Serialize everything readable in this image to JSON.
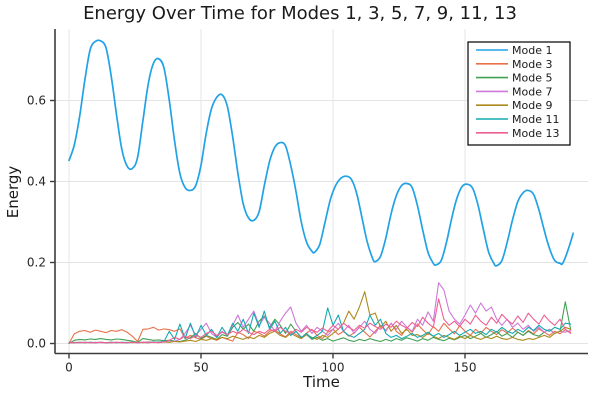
{
  "chart_data": {
    "type": "line",
    "title": "Energy Over Time for Modes 1, 3, 5, 7, 9, 11, 13",
    "xlabel": "Time",
    "ylabel": "Energy",
    "xlim": [
      -5.3,
      196.6
    ],
    "ylim": [
      -0.0247,
      0.7765
    ],
    "grid": true,
    "grid_color": "#e4e4e4",
    "axis_color": "#3c3c3c",
    "tick_label_color": "#262626",
    "legend": {
      "position": "top-right",
      "border_color": "#000000",
      "bg": "#ffffff"
    },
    "xticks": {
      "values": [
        0,
        50,
        100,
        150
      ],
      "labels": [
        "0",
        "50",
        "100",
        "150"
      ]
    },
    "yticks": {
      "values": [
        0.0,
        0.2,
        0.4,
        0.6
      ],
      "labels": [
        "0.0",
        "0.2",
        "0.4",
        "0.6"
      ]
    },
    "series": [
      {
        "name": "Mode 1",
        "color": "#22a2e6",
        "width": 1.7,
        "smooth": true,
        "points": [
          [
            0,
            0.452
          ],
          [
            2,
            0.49
          ],
          [
            4,
            0.56
          ],
          [
            6,
            0.65
          ],
          [
            8,
            0.725
          ],
          [
            10,
            0.746
          ],
          [
            12,
            0.747
          ],
          [
            14,
            0.73
          ],
          [
            16,
            0.66
          ],
          [
            18,
            0.565
          ],
          [
            20,
            0.48
          ],
          [
            22,
            0.438
          ],
          [
            24,
            0.432
          ],
          [
            26,
            0.46
          ],
          [
            28,
            0.55
          ],
          [
            30,
            0.64
          ],
          [
            32,
            0.692
          ],
          [
            34,
            0.703
          ],
          [
            36,
            0.68
          ],
          [
            38,
            0.6
          ],
          [
            40,
            0.5
          ],
          [
            42,
            0.42
          ],
          [
            44,
            0.385
          ],
          [
            46,
            0.378
          ],
          [
            48,
            0.39
          ],
          [
            50,
            0.44
          ],
          [
            52,
            0.52
          ],
          [
            54,
            0.58
          ],
          [
            56,
            0.608
          ],
          [
            58,
            0.614
          ],
          [
            60,
            0.585
          ],
          [
            62,
            0.51
          ],
          [
            64,
            0.42
          ],
          [
            66,
            0.345
          ],
          [
            68,
            0.31
          ],
          [
            70,
            0.304
          ],
          [
            72,
            0.325
          ],
          [
            74,
            0.39
          ],
          [
            76,
            0.45
          ],
          [
            78,
            0.485
          ],
          [
            80,
            0.496
          ],
          [
            82,
            0.488
          ],
          [
            84,
            0.44
          ],
          [
            86,
            0.375
          ],
          [
            88,
            0.3
          ],
          [
            90,
            0.25
          ],
          [
            92,
            0.228
          ],
          [
            93,
            0.225
          ],
          [
            95,
            0.245
          ],
          [
            97,
            0.3
          ],
          [
            99,
            0.355
          ],
          [
            101,
            0.39
          ],
          [
            103,
            0.408
          ],
          [
            105,
            0.413
          ],
          [
            107,
            0.405
          ],
          [
            109,
            0.37
          ],
          [
            111,
            0.31
          ],
          [
            113,
            0.25
          ],
          [
            115,
            0.21
          ],
          [
            116,
            0.202
          ],
          [
            118,
            0.215
          ],
          [
            120,
            0.26
          ],
          [
            122,
            0.32
          ],
          [
            124,
            0.365
          ],
          [
            126,
            0.39
          ],
          [
            128,
            0.395
          ],
          [
            130,
            0.385
          ],
          [
            132,
            0.34
          ],
          [
            134,
            0.28
          ],
          [
            136,
            0.225
          ],
          [
            138,
            0.198
          ],
          [
            139,
            0.194
          ],
          [
            141,
            0.205
          ],
          [
            143,
            0.25
          ],
          [
            145,
            0.31
          ],
          [
            147,
            0.36
          ],
          [
            149,
            0.388
          ],
          [
            151,
            0.393
          ],
          [
            153,
            0.382
          ],
          [
            155,
            0.34
          ],
          [
            157,
            0.28
          ],
          [
            159,
            0.225
          ],
          [
            161,
            0.197
          ],
          [
            162,
            0.192
          ],
          [
            164,
            0.205
          ],
          [
            166,
            0.25
          ],
          [
            168,
            0.305
          ],
          [
            170,
            0.35
          ],
          [
            172,
            0.372
          ],
          [
            174,
            0.378
          ],
          [
            176,
            0.368
          ],
          [
            178,
            0.33
          ],
          [
            180,
            0.28
          ],
          [
            182,
            0.235
          ],
          [
            184,
            0.205
          ],
          [
            186,
            0.198
          ],
          [
            187,
            0.198
          ],
          [
            189,
            0.23
          ],
          [
            191,
            0.272
          ]
        ]
      },
      {
        "name": "Mode 3",
        "color": "#e8714c",
        "width": 1.1,
        "smooth": false,
        "t0": 0,
        "dt": 2,
        "values": [
          0.0,
          0.024,
          0.03,
          0.032,
          0.028,
          0.033,
          0.03,
          0.027,
          0.032,
          0.03,
          0.034,
          0.028,
          0.018,
          0.005,
          0.035,
          0.036,
          0.04,
          0.033,
          0.036,
          0.034,
          0.03,
          0.036,
          0.012,
          0.02,
          0.014,
          0.01,
          0.018,
          0.012,
          0.008,
          0.015,
          0.01,
          0.006,
          0.028,
          0.022,
          0.012,
          0.03,
          0.026,
          0.018,
          0.03,
          0.034,
          0.024,
          0.016,
          0.03,
          0.022,
          0.014,
          0.026,
          0.035,
          0.02,
          0.012,
          0.028,
          0.035,
          0.022,
          0.03,
          0.018,
          0.026,
          0.04,
          0.028,
          0.016,
          0.03,
          0.045,
          0.032,
          0.05,
          0.03,
          0.02,
          0.04,
          0.028,
          0.048,
          0.034,
          0.022,
          0.042,
          0.03,
          0.05,
          0.036,
          0.024,
          0.044,
          0.03,
          0.02,
          0.035,
          0.025,
          0.04,
          0.03,
          0.022,
          0.034,
          0.026,
          0.038,
          0.028,
          0.02,
          0.032,
          0.024,
          0.036,
          0.028,
          0.02,
          0.03,
          0.024,
          0.034,
          0.028
        ]
      },
      {
        "name": "Mode 5",
        "color": "#3fa153",
        "width": 1.1,
        "smooth": false,
        "t0": 0,
        "dt": 2,
        "values": [
          0.0,
          0.008,
          0.01,
          0.009,
          0.011,
          0.01,
          0.012,
          0.01,
          0.009,
          0.011,
          0.01,
          0.008,
          0.006,
          0.003,
          0.012,
          0.01,
          0.008,
          0.009,
          0.007,
          0.008,
          0.006,
          0.005,
          0.008,
          0.015,
          0.025,
          0.012,
          0.02,
          0.015,
          0.01,
          0.022,
          0.018,
          0.04,
          0.052,
          0.035,
          0.048,
          0.03,
          0.055,
          0.068,
          0.04,
          0.06,
          0.045,
          0.025,
          0.048,
          0.03,
          0.015,
          0.022,
          0.01,
          0.015,
          0.008,
          0.012,
          0.006,
          0.01,
          0.014,
          0.008,
          0.005,
          0.01,
          0.007,
          0.012,
          0.008,
          0.005,
          0.01,
          0.006,
          0.012,
          0.008,
          0.014,
          0.01,
          0.006,
          0.012,
          0.008,
          0.015,
          0.01,
          0.007,
          0.013,
          0.009,
          0.015,
          0.02,
          0.012,
          0.018,
          0.025,
          0.015,
          0.022,
          0.03,
          0.018,
          0.025,
          0.015,
          0.028,
          0.02,
          0.03,
          0.022,
          0.018,
          0.028,
          0.035,
          0.025,
          0.03,
          0.103,
          0.035
        ]
      },
      {
        "name": "Mode 7",
        "color": "#cd78d9",
        "width": 1.1,
        "smooth": false,
        "t0": 0,
        "dt": 2,
        "values": [
          0.002,
          0.003,
          0.002,
          0.003,
          0.002,
          0.003,
          0.002,
          0.002,
          0.003,
          0.002,
          0.003,
          0.002,
          0.003,
          0.002,
          0.003,
          0.004,
          0.003,
          0.004,
          0.005,
          0.004,
          0.006,
          0.01,
          0.025,
          0.045,
          0.02,
          0.035,
          0.05,
          0.025,
          0.015,
          0.03,
          0.02,
          0.045,
          0.07,
          0.04,
          0.06,
          0.08,
          0.045,
          0.065,
          0.05,
          0.03,
          0.055,
          0.075,
          0.09,
          0.05,
          0.03,
          0.045,
          0.025,
          0.04,
          0.03,
          0.02,
          0.035,
          0.05,
          0.03,
          0.045,
          0.025,
          0.04,
          0.055,
          0.035,
          0.025,
          0.045,
          0.03,
          0.05,
          0.035,
          0.055,
          0.04,
          0.03,
          0.06,
          0.045,
          0.078,
          0.055,
          0.15,
          0.132,
          0.08,
          0.06,
          0.048,
          0.07,
          0.095,
          0.075,
          0.1,
          0.08,
          0.09,
          0.06,
          0.045,
          0.06,
          0.04,
          0.05,
          0.035,
          0.045,
          0.03,
          0.04,
          0.028,
          0.035,
          0.025,
          0.03,
          0.028,
          0.032
        ]
      },
      {
        "name": "Mode 9",
        "color": "#ad8a1e",
        "width": 1.1,
        "smooth": false,
        "t0": 0,
        "dt": 2,
        "values": [
          0.002,
          0.002,
          0.003,
          0.002,
          0.003,
          0.002,
          0.003,
          0.002,
          0.002,
          0.003,
          0.002,
          0.003,
          0.002,
          0.003,
          0.002,
          0.003,
          0.004,
          0.003,
          0.004,
          0.003,
          0.005,
          0.004,
          0.006,
          0.008,
          0.005,
          0.01,
          0.008,
          0.012,
          0.01,
          0.015,
          0.012,
          0.018,
          0.014,
          0.01,
          0.016,
          0.012,
          0.02,
          0.015,
          0.025,
          0.03,
          0.02,
          0.015,
          0.025,
          0.018,
          0.012,
          0.022,
          0.015,
          0.01,
          0.02,
          0.015,
          0.025,
          0.035,
          0.05,
          0.08,
          0.06,
          0.09,
          0.128,
          0.07,
          0.075,
          0.04,
          0.055,
          0.03,
          0.045,
          0.025,
          0.035,
          0.02,
          0.022,
          0.015,
          0.025,
          0.018,
          0.012,
          0.02,
          0.015,
          0.01,
          0.018,
          0.012,
          0.02,
          0.014,
          0.01,
          0.016,
          0.012,
          0.018,
          0.012,
          0.01,
          0.015,
          0.01,
          0.008,
          0.012,
          0.01,
          0.015,
          0.02,
          0.015,
          0.025,
          0.03,
          0.04,
          0.035
        ]
      },
      {
        "name": "Mode 11",
        "color": "#17a9b2",
        "width": 1.1,
        "smooth": false,
        "t0": 0,
        "dt": 2,
        "values": [
          0.003,
          0.002,
          0.003,
          0.002,
          0.003,
          0.002,
          0.003,
          0.002,
          0.003,
          0.002,
          0.003,
          0.002,
          0.003,
          0.002,
          0.003,
          0.002,
          0.004,
          0.003,
          0.005,
          0.03,
          0.01,
          0.048,
          0.012,
          0.05,
          0.015,
          0.045,
          0.02,
          0.035,
          0.015,
          0.04,
          0.02,
          0.05,
          0.03,
          0.06,
          0.025,
          0.075,
          0.04,
          0.08,
          0.035,
          0.055,
          0.025,
          0.04,
          0.02,
          0.03,
          0.015,
          0.025,
          0.012,
          0.02,
          0.03,
          0.088,
          0.045,
          0.07,
          0.03,
          0.02,
          0.015,
          0.025,
          0.035,
          0.07,
          0.045,
          0.06,
          0.025,
          0.015,
          0.02,
          0.012,
          0.018,
          0.025,
          0.015,
          0.02,
          0.028,
          0.018,
          0.025,
          0.015,
          0.022,
          0.03,
          0.02,
          0.028,
          0.035,
          0.025,
          0.03,
          0.022,
          0.035,
          0.028,
          0.04,
          0.03,
          0.025,
          0.035,
          0.028,
          0.04,
          0.032,
          0.045,
          0.035,
          0.03,
          0.04,
          0.035,
          0.05,
          0.048
        ]
      },
      {
        "name": "Mode 13",
        "color": "#ee5f94",
        "width": 1.1,
        "smooth": false,
        "t0": 0,
        "dt": 2,
        "values": [
          0.002,
          0.002,
          0.002,
          0.003,
          0.002,
          0.002,
          0.003,
          0.002,
          0.002,
          0.003,
          0.002,
          0.002,
          0.003,
          0.002,
          0.003,
          0.002,
          0.003,
          0.002,
          0.004,
          0.008,
          0.015,
          0.01,
          0.018,
          0.012,
          0.02,
          0.015,
          0.025,
          0.03,
          0.02,
          0.028,
          0.022,
          0.03,
          0.025,
          0.035,
          0.028,
          0.022,
          0.03,
          0.025,
          0.035,
          0.03,
          0.04,
          0.03,
          0.025,
          0.035,
          0.028,
          0.04,
          0.032,
          0.028,
          0.038,
          0.03,
          0.045,
          0.035,
          0.05,
          0.04,
          0.032,
          0.045,
          0.038,
          0.05,
          0.042,
          0.035,
          0.048,
          0.04,
          0.055,
          0.045,
          0.038,
          0.052,
          0.042,
          0.065,
          0.05,
          0.04,
          0.11,
          0.06,
          0.045,
          0.055,
          0.042,
          0.06,
          0.048,
          0.07,
          0.055,
          0.045,
          0.065,
          0.05,
          0.072,
          0.058,
          0.048,
          0.068,
          0.052,
          0.075,
          0.06,
          0.048,
          0.07,
          0.055,
          0.045,
          0.06,
          0.035,
          0.025
        ]
      }
    ]
  }
}
